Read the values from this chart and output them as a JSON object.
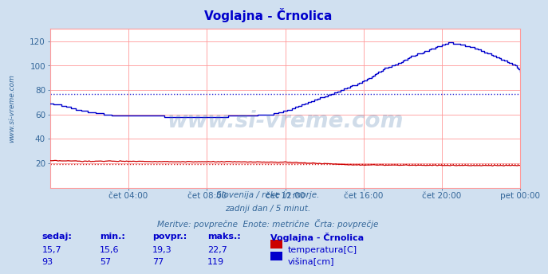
{
  "title": "Voglajna - Črnolica",
  "bg_color": "#d0e0f0",
  "plot_bg_color": "#ffffff",
  "grid_color": "#ff9999",
  "ylabel_color": "#336699",
  "xlabel_color": "#336699",
  "title_color": "#0000cc",
  "watermark": "www.si-vreme.com",
  "watermark_color": "#4477aa",
  "watermark_alpha": 0.25,
  "sidebar_text": "www.si-vreme.com",
  "subtitle1": "Slovenija / reke in morje.",
  "subtitle2": "zadnji dan / 5 minut.",
  "subtitle3": "Meritve: povprečne  Enote: metrične  Črta: povprečje",
  "legend_title": "Voglajna - Črnolica",
  "legend_temp": "temperatura[C]",
  "legend_height": "višina[cm]",
  "stat_headers": [
    "sedaj:",
    "min.:",
    "povpr.:",
    "maks.:"
  ],
  "stat_temp": [
    "15,7",
    "15,6",
    "19,3",
    "22,7"
  ],
  "stat_height": [
    "93",
    "57",
    "77",
    "119"
  ],
  "avg_temp": 19.3,
  "avg_height": 77.0,
  "xtick_labels": [
    "čet 04:00",
    "čet 08:00",
    "čet 12:00",
    "čet 16:00",
    "čet 20:00",
    "pet 00:00"
  ],
  "xtick_positions": [
    48,
    96,
    144,
    192,
    240,
    288
  ],
  "ytick_positions": [
    20,
    40,
    60,
    80,
    100,
    120
  ],
  "temp_color": "#cc0000",
  "height_color": "#0000cc"
}
